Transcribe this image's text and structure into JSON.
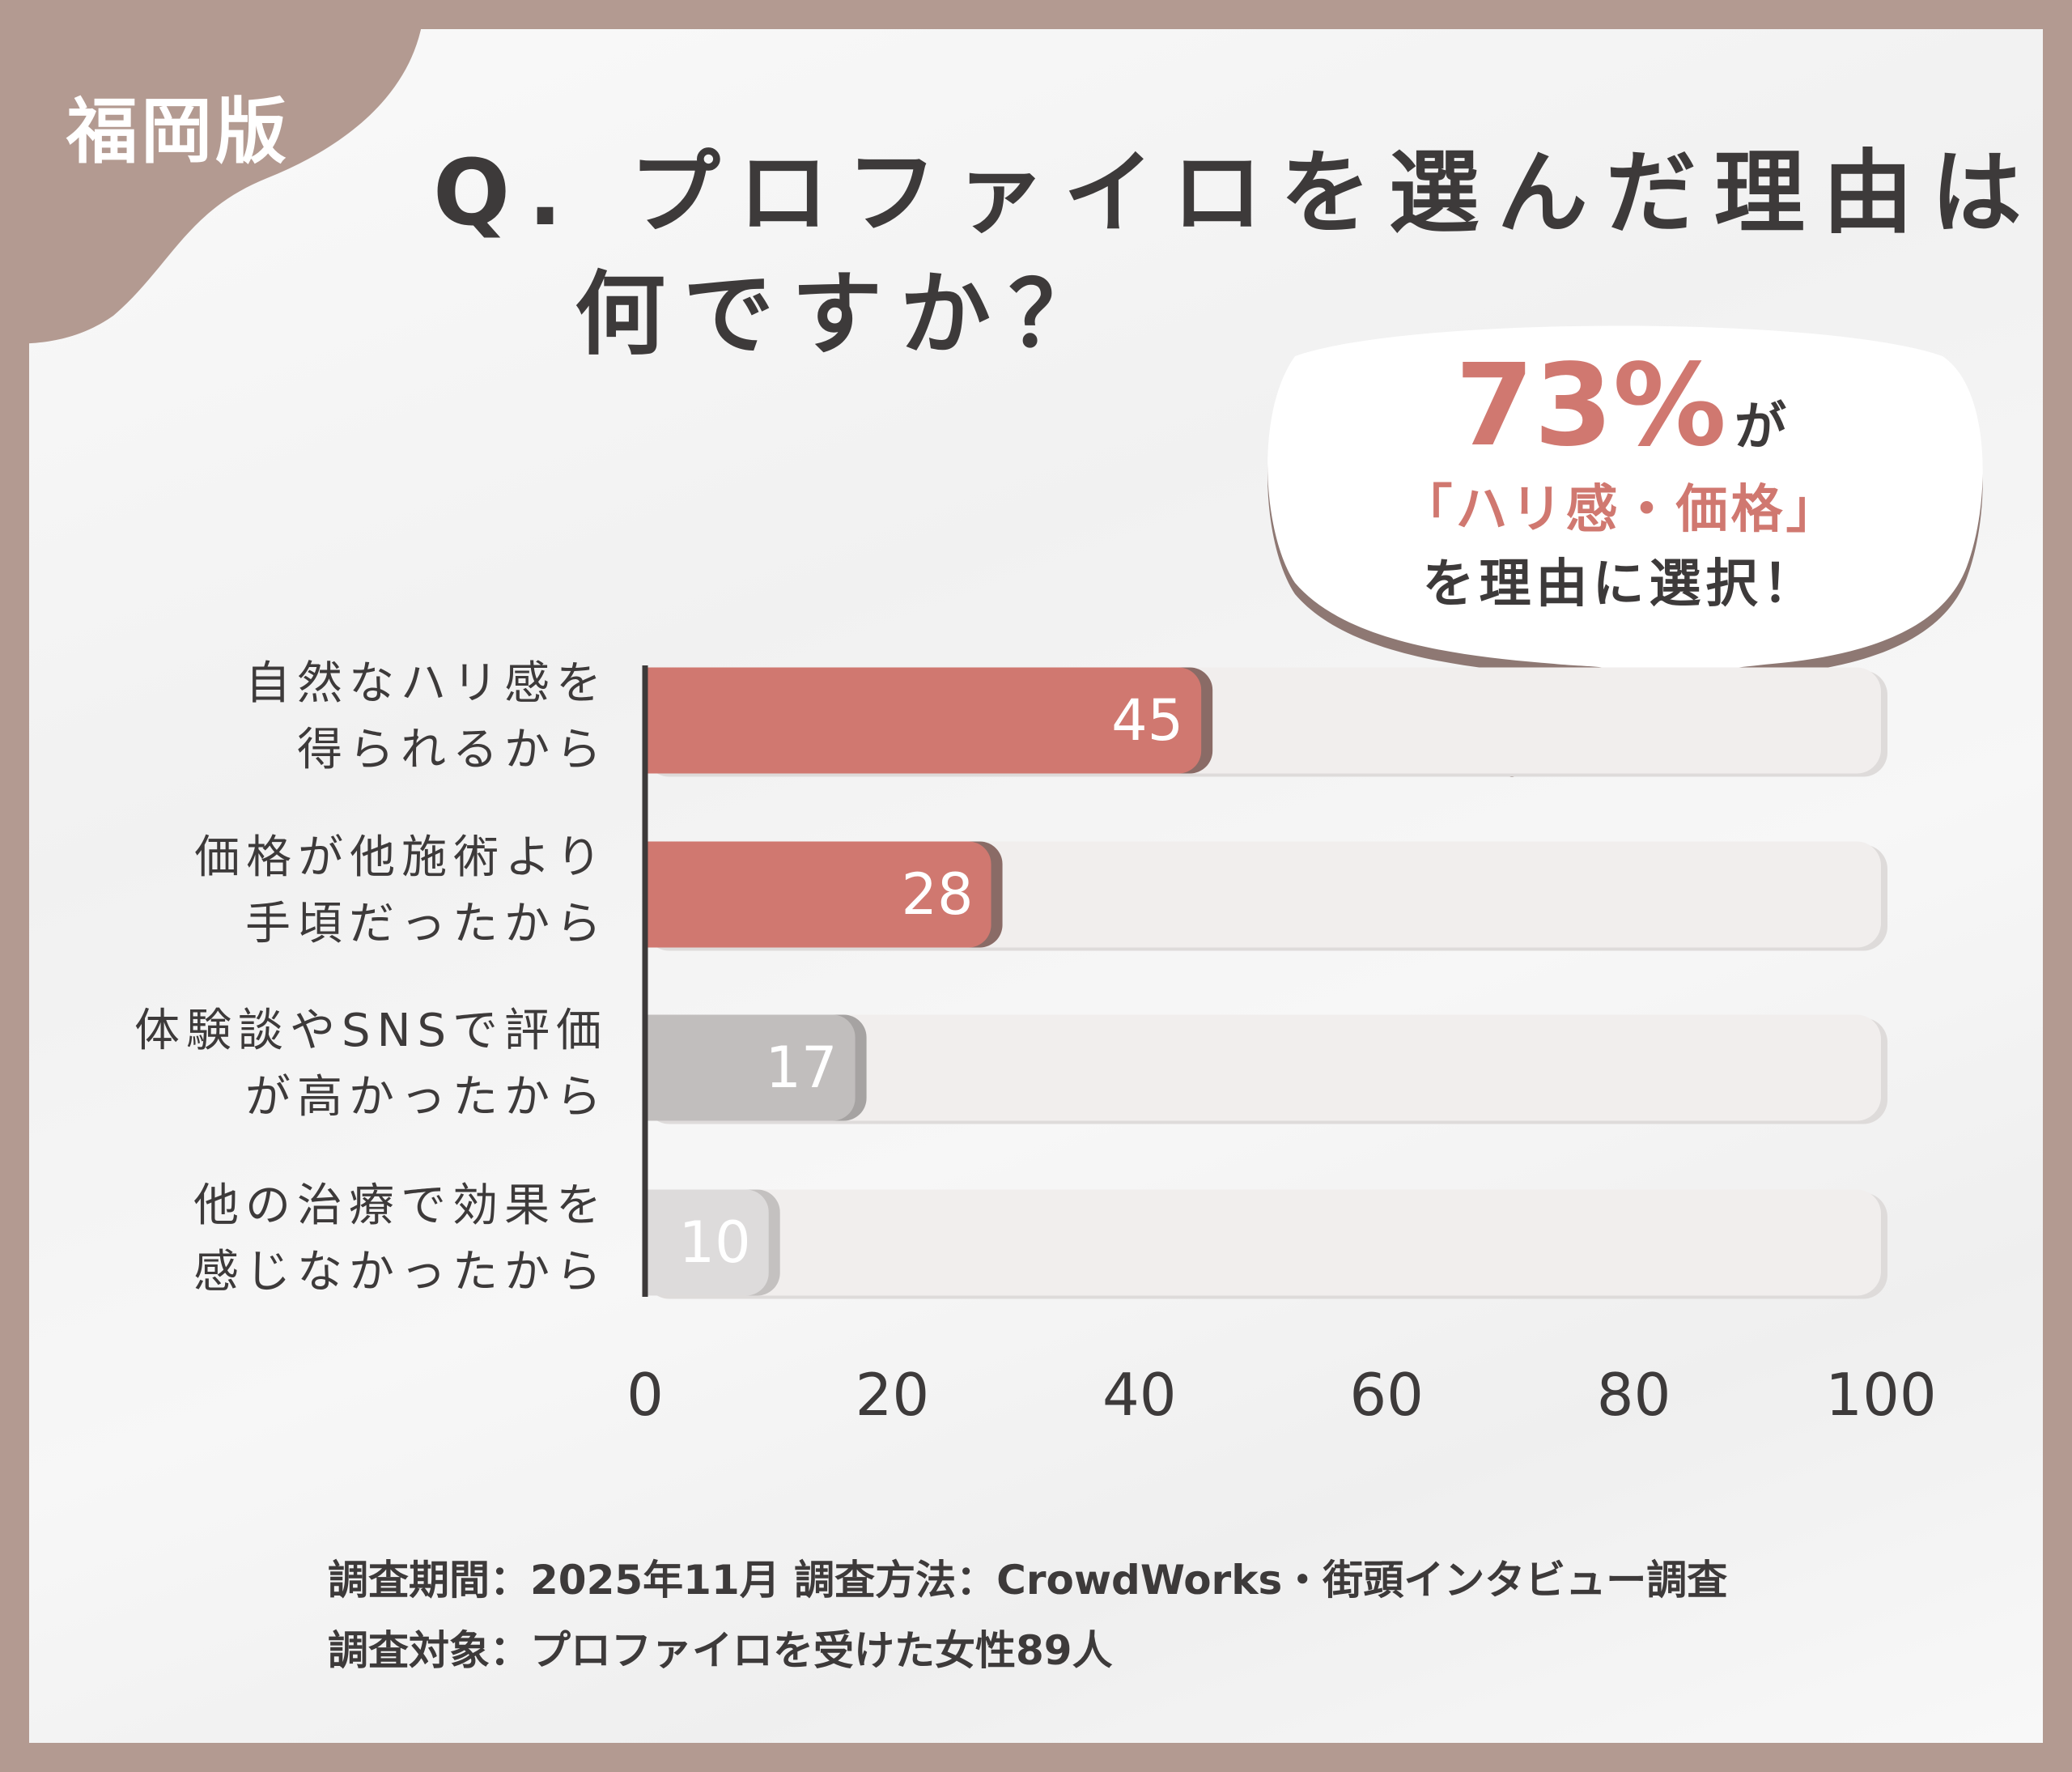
{
  "edition": "福岡版",
  "title_line1": "Q. プロファイロを選んだ理由は",
  "title_line2": "何ですか？",
  "callout": {
    "percent": "73%",
    "particle": "が",
    "highlight": "「ハリ感・価格」",
    "line3": "を理由に選択！"
  },
  "colors": {
    "frame": "#b39a91",
    "accent": "#d07870",
    "text": "#3d3a3a",
    "track": "#f1eeed"
  },
  "chart_data": {
    "type": "bar",
    "orientation": "horizontal",
    "categories": [
      [
        "自然なハリ感を",
        "得られるから"
      ],
      [
        "価格が他施術より",
        "手頃だったから"
      ],
      [
        "体験談やSNSで評価",
        "が高かったから"
      ],
      [
        "他の治療で効果を",
        "感じなかったから"
      ]
    ],
    "values": [
      45,
      28,
      17,
      10
    ],
    "bar_colors": [
      "#d07870",
      "#d07870",
      "#c1bebd",
      "#dddbdb"
    ],
    "xlim": [
      0,
      100
    ],
    "xticks": [
      "0",
      "20",
      "40",
      "60",
      "80",
      "100"
    ],
    "grid": false
  },
  "footer": {
    "line1": "調査期間：2025年11月  調査方法：CrowdWorks・街頭インタビュー調査",
    "line2": "調査対象：プロファイロを受けた女性89人"
  }
}
